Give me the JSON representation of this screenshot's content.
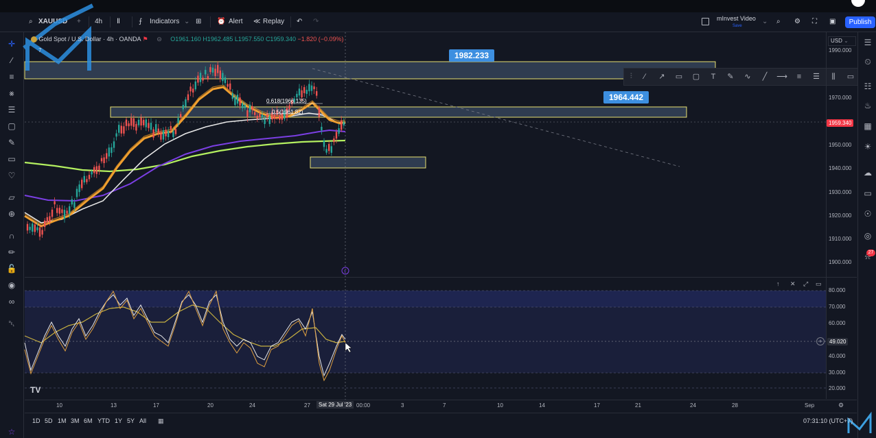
{
  "toolbar": {
    "symbol": "XAUUSD",
    "interval": "4h",
    "indicators_label": "Indicators",
    "alert_label": "Alert",
    "replay_label": "Replay",
    "layout_name": "mInvest Video",
    "layout_status": "Save",
    "publish_label": "Publish"
  },
  "legend": {
    "title": "Gold Spot / U.S. Dollar · 4h · OANDA",
    "open": "O1961.160",
    "high": "H1962.485",
    "low": "L1957.550",
    "close": "C1959.340",
    "change": "−1.820 (−0.09%)",
    "count": "7"
  },
  "price_scale": {
    "currency": "USD",
    "ticks": [
      "1990.000",
      "1970.000",
      "1960.000",
      "1950.000",
      "1940.000",
      "1930.000",
      "1920.000",
      "1910.000",
      "1900.000"
    ],
    "current_price": "1959.340"
  },
  "rsi_scale": {
    "ticks": [
      "80.000",
      "70.000",
      "60.000",
      "40.000",
      "30.000",
      "20.000"
    ],
    "current": "49.020"
  },
  "annotations": {
    "level_high": "1982.233",
    "level_mid": "1964.442",
    "fib_618": "0.618(1966.135)",
    "fib_5": "0.5(1961.82)"
  },
  "time_axis": {
    "ticks": [
      "10",
      "13",
      "17",
      "20",
      "24",
      "27",
      "3",
      "7",
      "10",
      "14",
      "17",
      "21",
      "24",
      "28",
      "Sep"
    ],
    "cursor_label": "Sat 29 Jul '23",
    "cursor_time": "00:00"
  },
  "ranges": [
    "1D",
    "5D",
    "1M",
    "3M",
    "6M",
    "YTD",
    "1Y",
    "5Y",
    "All"
  ],
  "clock": "07:31:10 (UTC+7)",
  "notifications_count": "27",
  "colors": {
    "background": "#131722",
    "up": "#26a69a",
    "down": "#ef5350",
    "ema_fast": "#f0a030",
    "ema_white": "#e8e8e8",
    "ema_purple": "#7b3fe4",
    "ema_green": "#b4f060",
    "zone": "#3a4a60",
    "zone_border": "#e8e070",
    "publish": "#2962ff"
  }
}
